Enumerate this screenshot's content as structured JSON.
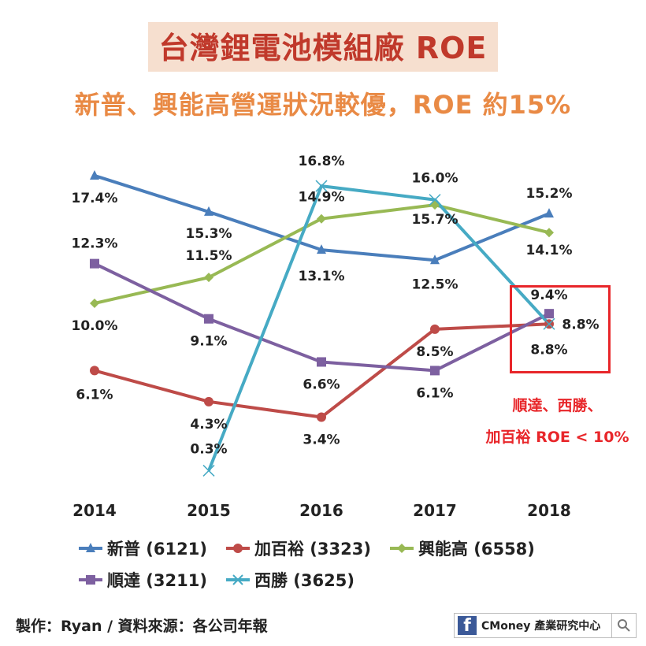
{
  "title": "台灣鋰電池模組廠 ROE",
  "subtitle": "新普、興能高營運狀況較優，ROE 約15%",
  "note_line1": "順達、西勝、",
  "note_line2": "加百裕 ROE < 10%",
  "footer": "製作：Ryan / 資料來源：各公司年報",
  "brand": {
    "icon": "f",
    "text": "CMoney 產業研究中心",
    "search_icon": "search-icon"
  },
  "chart_data": {
    "type": "line",
    "categories": [
      "2014",
      "2015",
      "2016",
      "2017",
      "2018"
    ],
    "series": [
      {
        "name": "新普 (6121)",
        "color": "#4a7ebb",
        "marker": "triangle",
        "values": [
          17.4,
          15.3,
          13.1,
          12.5,
          15.2
        ],
        "labels": [
          "17.4%",
          "15.3%",
          "13.1%",
          "12.5%",
          "15.2%"
        ]
      },
      {
        "name": "加百裕 (3323)",
        "color": "#be4b48",
        "marker": "circle",
        "values": [
          6.1,
          4.3,
          3.4,
          8.5,
          8.8
        ],
        "labels": [
          "6.1%",
          "4.3%",
          "3.4%",
          "8.5%",
          "8.8%"
        ]
      },
      {
        "name": "興能高 (6558)",
        "color": "#98b954",
        "marker": "diamond",
        "values": [
          10.0,
          11.5,
          14.9,
          15.7,
          14.1
        ],
        "labels": [
          "10.0%",
          "11.5%",
          "14.9%",
          "15.7%",
          "14.1%"
        ]
      },
      {
        "name": "順達 (3211)",
        "color": "#7d60a0",
        "marker": "square",
        "values": [
          12.3,
          9.1,
          6.6,
          6.1,
          9.4
        ],
        "labels": [
          "12.3%",
          "9.1%",
          "6.6%",
          "6.1%",
          "9.4%"
        ]
      },
      {
        "name": "西勝 (3625)",
        "color": "#46aac4",
        "marker": "x",
        "values": [
          null,
          0.3,
          16.8,
          16.0,
          8.8
        ],
        "labels": [
          null,
          "0.3%",
          "16.8%",
          "16.0%",
          "8.8%"
        ]
      }
    ],
    "legend_position": "bottom",
    "grid": false
  }
}
